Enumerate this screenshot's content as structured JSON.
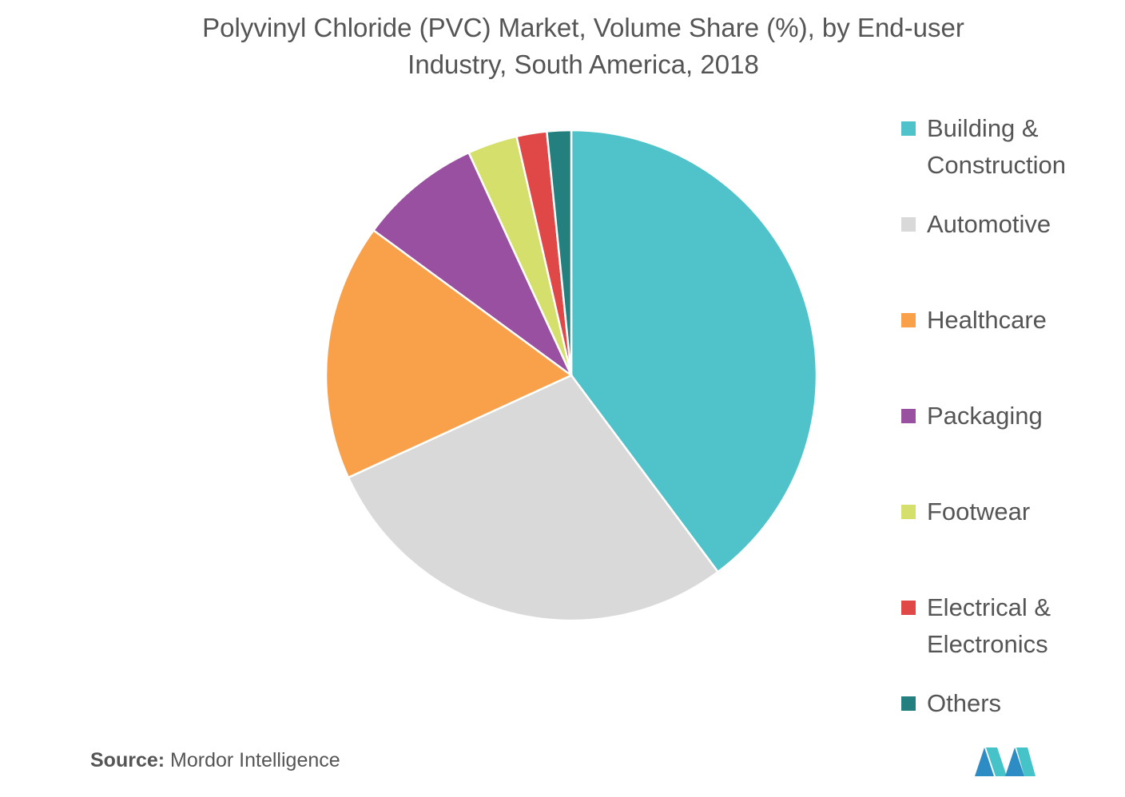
{
  "chart_data": {
    "type": "pie",
    "title_lines": [
      "Polyvinyl Chloride (PVC) Market, Volume Share (%), by End-user",
      "Industry, South America, 2018"
    ],
    "slices": [
      {
        "label": "Building &\nConstruction",
        "value": 40.0,
        "color": "#4FC3C9"
      },
      {
        "label": "Automotive",
        "value": 28.5,
        "color": "#D9D9D9"
      },
      {
        "label": "Healthcare",
        "value": 17.0,
        "color": "#F9A04A"
      },
      {
        "label": "Packaging",
        "value": 8.1,
        "color": "#9A50A0"
      },
      {
        "label": "Footwear",
        "value": 3.3,
        "color": "#D4E06B"
      },
      {
        "label": " Electrical &\nElectronics",
        "value": 2.0,
        "color": "#E04848"
      },
      {
        "label": "Others",
        "value": 1.6,
        "color": "#24807E"
      }
    ],
    "legend_position": "right",
    "source_label": "Source:",
    "source_text": "Mordor Intelligence"
  }
}
